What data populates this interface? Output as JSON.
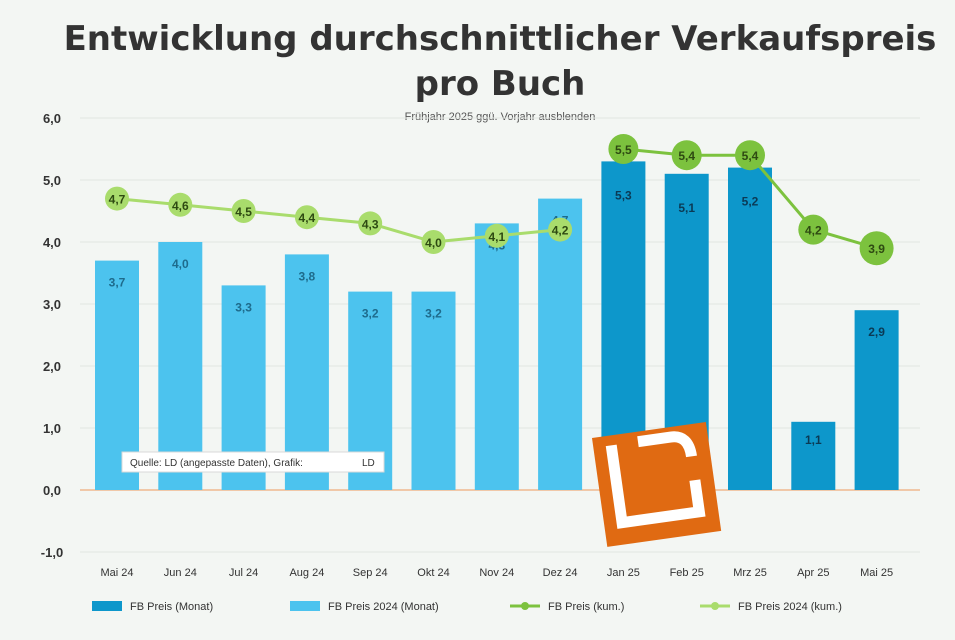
{
  "chart_data": {
    "type": "bar",
    "title_line1": "Entwicklung durchschnittlicher Verkaufspreis",
    "title_line2": "pro Buch",
    "subtitle": "Frühjahr 2025 ggü. Vorjahr ausblenden",
    "categories": [
      "Mai 24",
      "Jun 24",
      "Jul 24",
      "Aug 24",
      "Sep 24",
      "Okt 24",
      "Nov 24",
      "Dez 24",
      "Jan 25",
      "Feb 25",
      "Mrz 25",
      "Apr 25",
      "Mai 25"
    ],
    "ylim": [
      -1.0,
      6.0
    ],
    "yticks": [
      "6,0",
      "5,0",
      "4,0",
      "3,0",
      "2,0",
      "1,0",
      "0,0",
      "-1,0"
    ],
    "series": [
      {
        "name": "FB Preis 2024 (Monat)",
        "kind": "bar",
        "color": "#4cc3ee",
        "values": [
          3.7,
          4.0,
          3.3,
          3.8,
          3.2,
          3.2,
          4.3,
          4.7,
          null,
          null,
          null,
          null,
          null
        ],
        "labels": [
          "3,7",
          "4,0",
          "3,3",
          "3,8",
          "3,2",
          "3,2",
          "4,3",
          "4,7",
          "",
          "",
          "",
          "",
          ""
        ]
      },
      {
        "name": "FB Preis (Monat)",
        "kind": "bar",
        "color": "#0d97cb",
        "values": [
          null,
          null,
          null,
          null,
          null,
          null,
          null,
          null,
          5.3,
          5.1,
          5.2,
          1.1,
          2.9
        ],
        "labels": [
          "",
          "",
          "",
          "",
          "",
          "",
          "",
          "",
          "5,3",
          "5,1",
          "5,2",
          "1,1",
          "2,9"
        ]
      },
      {
        "name": "FB Preis 2024 (kum.)",
        "kind": "line",
        "color": "#a9dc6c",
        "values": [
          4.7,
          4.6,
          4.5,
          4.4,
          4.3,
          4.0,
          4.1,
          4.2,
          null,
          null,
          null,
          null,
          null
        ],
        "labels": [
          "4,7",
          "4,6",
          "4,5",
          "4,4",
          "4,3",
          "4,0",
          "4,1",
          "4,2",
          "",
          "",
          "",
          "",
          ""
        ]
      },
      {
        "name": "FB Preis (kum.)",
        "kind": "line",
        "color": "#7cc23e",
        "values": [
          null,
          null,
          null,
          null,
          null,
          null,
          null,
          null,
          5.5,
          5.4,
          5.4,
          4.2,
          3.9
        ],
        "labels": [
          "",
          "",
          "",
          "",
          "",
          "",
          "",
          "",
          "5,5",
          "5,4",
          "5,4",
          "4,2",
          "3,9"
        ]
      }
    ],
    "legend_order": [
      "FB Preis (Monat)",
      "FB Preis 2024 (Monat)",
      "FB Preis (kum.)",
      "FB Preis 2024 (kum.)"
    ],
    "legend_position": "bottom",
    "source_note": "Quelle: LD (angepasste Daten), Grafik:",
    "source_logo": "LD",
    "logo": "LD",
    "grid": true
  }
}
